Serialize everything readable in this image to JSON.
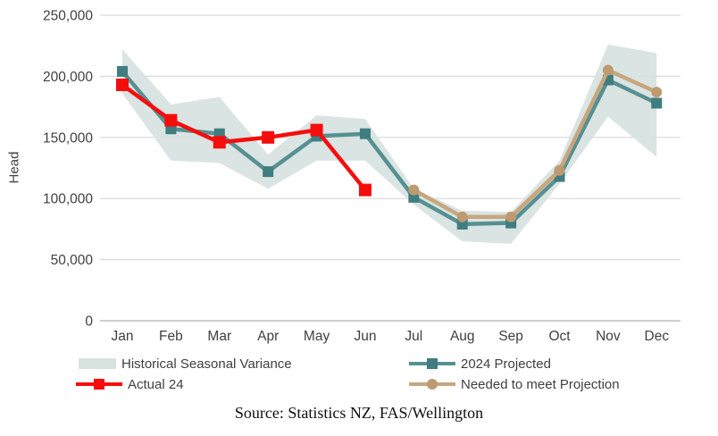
{
  "chart_data": {
    "type": "line",
    "title": "",
    "xlabel": "",
    "ylabel": "Head",
    "categories": [
      "Jan",
      "Feb",
      "Mar",
      "Apr",
      "May",
      "Jun",
      "Jul",
      "Aug",
      "Sep",
      "Oct",
      "Nov",
      "Dec"
    ],
    "y_ticks": [
      0,
      50000,
      100000,
      150000,
      200000,
      250000
    ],
    "y_tick_labels": [
      "0",
      "50,000",
      "100,000",
      "150,000",
      "200,000",
      "250,000"
    ],
    "ylim": [
      0,
      250000
    ],
    "grid": true,
    "legend_position": "bottom",
    "band": {
      "name": "Historical Seasonal Variance",
      "upper": [
        222000,
        177000,
        183000,
        136000,
        168000,
        165000,
        108000,
        90000,
        89000,
        131000,
        226000,
        219000
      ],
      "lower": [
        186000,
        131000,
        129000,
        108000,
        131000,
        131000,
        95000,
        65000,
        63000,
        112000,
        167000,
        134000
      ],
      "color": "#d8e3e0"
    },
    "series": [
      {
        "name": "2024 Projected",
        "marker": "square",
        "values": [
          204000,
          157000,
          153000,
          122000,
          151000,
          153000,
          101000,
          79000,
          80000,
          118000,
          197000,
          178000
        ],
        "color": "#569092",
        "marker_color": "#3f7d80",
        "line_width": 4.5,
        "marker_size": 12
      },
      {
        "name": "Needed to meet Projection",
        "marker": "circle",
        "values": [
          null,
          null,
          null,
          null,
          null,
          null,
          107000,
          85000,
          85000,
          123000,
          205000,
          187000
        ],
        "color": "#c8a67e",
        "marker_color": "#bd9a6f",
        "line_width": 4.5,
        "marker_size": 12
      },
      {
        "name": "Actual 24",
        "marker": "square",
        "values": [
          193000,
          164000,
          146000,
          150000,
          156000,
          107000,
          null,
          null,
          null,
          null,
          null,
          null
        ],
        "color": "#f50d0d",
        "marker_color": "#f50d0d",
        "line_width": 4.5,
        "marker_size": 14
      }
    ],
    "grid_color": "#d9d9d9",
    "axis_line_color": "#b3b3b3"
  },
  "legend": {
    "items": [
      {
        "label": "Historical Seasonal Variance"
      },
      {
        "label": "2024 Projected"
      },
      {
        "label": "Actual 24"
      },
      {
        "label": "Needed to meet Projection"
      }
    ]
  },
  "source": {
    "text": "Source: Statistics NZ, FAS/Wellington"
  }
}
